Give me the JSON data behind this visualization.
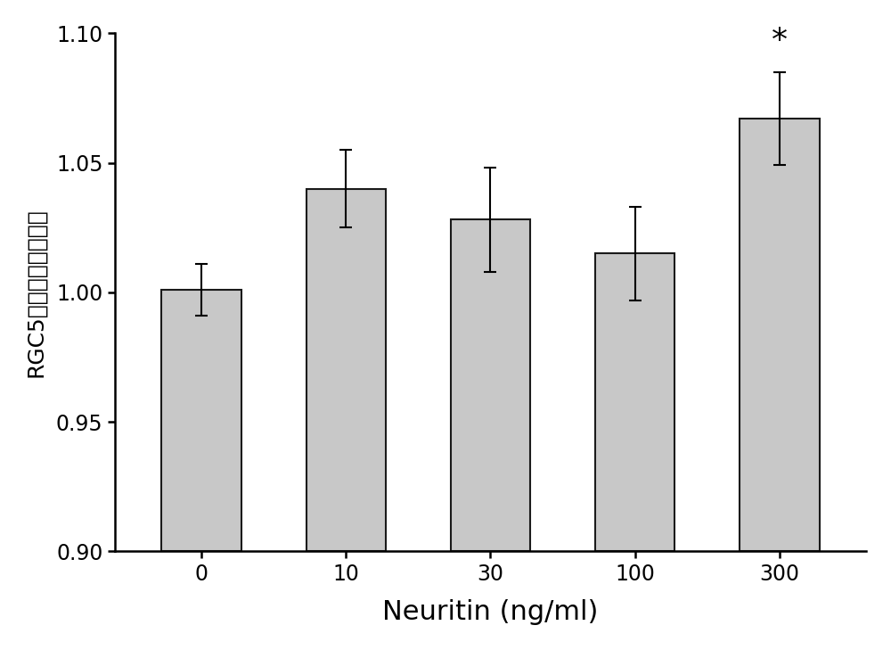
{
  "categories": [
    "0",
    "10",
    "30",
    "100",
    "300"
  ],
  "values": [
    1.001,
    1.04,
    1.028,
    1.015,
    1.067
  ],
  "errors": [
    0.01,
    0.015,
    0.02,
    0.018,
    0.018
  ],
  "bar_color": "#c8c8c8",
  "bar_edgecolor": "#1a1a1a",
  "xlabel": "Neuritin (ng/ml)",
  "ylabel": "RGC5存活率（标准化）",
  "ylim": [
    0.9,
    1.1
  ],
  "yticks": [
    0.9,
    0.95,
    1.0,
    1.05,
    1.1
  ],
  "ymin": 0.9,
  "significance_bar_index": 4,
  "significance_label": "*",
  "background_color": "#ffffff",
  "bar_width": 0.55,
  "xlabel_fontsize": 22,
  "ylabel_fontsize": 18,
  "tick_fontsize": 17,
  "sig_fontsize": 26
}
